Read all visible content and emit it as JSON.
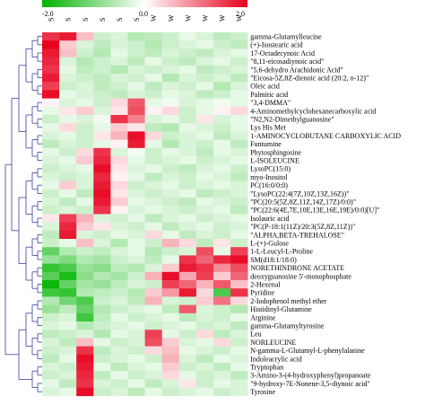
{
  "chart_data": {
    "type": "heatmap",
    "color_scale": {
      "min": -2.0,
      "mid": 0.0,
      "max": 2.0,
      "min_label": "-2.0",
      "mid_label": "0.0",
      "max_label": "2.0",
      "low_color": "#00b400",
      "mid_color": "#ffffff",
      "high_color": "#e8001c"
    },
    "columns": [
      "S",
      "S",
      "S",
      "S",
      "S",
      "S",
      "W",
      "W",
      "W",
      "W",
      "W",
      "W"
    ],
    "rows": [
      "gamma-Glutamylleucine",
      "(+)-Isostearic acid",
      "17-Octadecynoic Acid",
      "\"8,11-eicosadiynoic acid\"",
      "\"5,6-dehydro Arachidonic Acid\"",
      "\"Eicosa-5Z,8Z-dienoic acid (20:2, n-12)\"",
      "Oleic acid",
      "Palmitic acid",
      "\"3,4-DMMA\"",
      "4-Aminomethylcyclohexanecarboxylic acid",
      "\"N2,N2-Dimethylguanosine\"",
      "Lys His Met",
      "1-AMINOCYCLOBUTANE CARBOXYLIC ACID",
      "Funtumine",
      "Phytosphingosine",
      "L-ISOLEUCINE",
      "LysoPC(15:0)",
      "myo-Inositol",
      "PC(16:0/0:0)",
      "\"LysoPC(22:4(7Z,10Z,13Z,16Z))\"",
      "\"PC(20:5(5Z,8Z,11Z,14Z,17Z)/0:0)\"",
      "\"PC(22:6(4E,7E,10E,13E,16E,19E)/0:0)[U]\"",
      "Isolauric acid",
      "\"PC(P-18:1(11Z)/20:3(5Z,8Z,11Z))\"",
      "\"ALPHA,BETA-TREHALOSE\"",
      "L-(+)-Gulose",
      "1-L-Leucyl-L-Proline",
      "SM(d18:1/18:0)",
      "NORETHINDRONE ACETATE",
      "deoxyguanosine 5'-monophosphate",
      "2-Hexenal",
      "Pyridine",
      "2-Iodophenol methyl ether",
      "Histidinyl-Glutamine",
      "Arginine",
      "gamma-Glutamyltyrosine",
      "Leu",
      "NORLEUCINE",
      "N-gamma-L-Glutamyl-L-phenylalanine",
      "Indoleacrylic acid",
      "Tryptophan",
      "3-Amino-3-(4-hydroxyphenyl)propanoate",
      "\"9-hydroxy-7E-Nonene-3,5-diynoic acid\"",
      "Tyrosine"
    ],
    "values": [
      [
        1.6,
        1.8,
        0.5,
        -0.4,
        -0.3,
        -0.6,
        -0.5,
        -0.4,
        -0.2,
        -0.3,
        -0.5,
        -0.4
      ],
      [
        2.0,
        0.4,
        -0.3,
        -0.5,
        -0.3,
        -0.4,
        -0.6,
        -0.4,
        -0.3,
        -0.2,
        -0.4,
        -0.5
      ],
      [
        1.8,
        0.5,
        -0.4,
        -0.6,
        -0.2,
        -0.4,
        -0.5,
        -0.3,
        -0.4,
        -0.5,
        -0.3,
        -0.2
      ],
      [
        1.7,
        -0.3,
        -0.6,
        -0.4,
        -0.3,
        -0.5,
        -0.2,
        -0.4,
        -0.5,
        -0.3,
        -0.2,
        -0.4
      ],
      [
        1.6,
        -0.2,
        -0.5,
        -0.4,
        -0.6,
        -0.3,
        -0.4,
        -0.3,
        -0.2,
        -0.5,
        -0.4,
        -0.3
      ],
      [
        1.8,
        -0.3,
        -0.4,
        -0.5,
        -0.3,
        -0.4,
        -0.2,
        -0.6,
        -0.3,
        -0.4,
        -0.3,
        -0.5
      ],
      [
        1.5,
        -0.4,
        -0.3,
        -0.5,
        -0.4,
        -0.2,
        -0.5,
        -0.3,
        -0.4,
        -0.2,
        -0.6,
        -0.3
      ],
      [
        1.9,
        -0.2,
        -0.3,
        -0.4,
        -0.5,
        -0.3,
        -0.4,
        -0.2,
        -0.3,
        -0.5,
        -0.4,
        -0.2
      ],
      [
        0.1,
        -0.3,
        -0.2,
        -0.4,
        0.3,
        1.3,
        -0.2,
        -0.1,
        -0.3,
        -0.2,
        -0.1,
        -0.2
      ],
      [
        -0.2,
        0.2,
        0.4,
        -0.3,
        0.2,
        1.4,
        0.1,
        0.3,
        -0.4,
        -0.2,
        0.1,
        0.3
      ],
      [
        -0.4,
        -0.2,
        -0.3,
        -0.1,
        1.6,
        1.0,
        -0.3,
        -0.2,
        -0.4,
        0.2,
        -0.3,
        -0.2
      ],
      [
        -0.2,
        0.3,
        -0.4,
        -0.2,
        0.4,
        0.2,
        -0.5,
        -0.6,
        -0.2,
        -0.3,
        -0.4,
        -0.2
      ],
      [
        -0.3,
        -0.2,
        -0.4,
        0.2,
        0.6,
        1.9,
        0.3,
        -0.4,
        -0.3,
        -0.2,
        -0.5,
        -0.3
      ],
      [
        -0.5,
        -0.3,
        -0.4,
        -0.2,
        0.1,
        1.8,
        -0.2,
        -0.6,
        -0.3,
        -0.4,
        -0.2,
        -0.5
      ],
      [
        -0.2,
        -0.4,
        0.3,
        1.6,
        -0.3,
        -0.1,
        -0.4,
        -0.2,
        -0.3,
        -0.5,
        -0.2,
        -0.3
      ],
      [
        -0.3,
        -0.2,
        0.4,
        1.7,
        0.3,
        -0.2,
        -0.4,
        -0.3,
        -0.2,
        -0.4,
        -0.3,
        -0.2
      ],
      [
        -0.4,
        -0.3,
        -0.2,
        1.9,
        0.2,
        -0.3,
        -0.2,
        -0.4,
        -0.5,
        -0.3,
        -0.2,
        -0.4
      ],
      [
        -0.3,
        -0.4,
        -0.3,
        1.7,
        0.1,
        -0.2,
        -0.5,
        -0.3,
        -0.4,
        -0.2,
        -0.3,
        -0.5
      ],
      [
        -0.2,
        0.4,
        -0.3,
        1.8,
        0.3,
        -0.4,
        -0.3,
        -0.2,
        -0.4,
        -0.3,
        -0.2,
        -0.3
      ],
      [
        -0.4,
        -0.2,
        -0.5,
        1.9,
        0.2,
        -0.3,
        -0.4,
        -0.3,
        -0.2,
        -0.5,
        -0.4,
        -0.3
      ],
      [
        -0.3,
        -0.5,
        -0.2,
        1.8,
        0.4,
        -0.2,
        -0.3,
        -0.4,
        -0.5,
        -0.2,
        -0.3,
        -0.4
      ],
      [
        -0.4,
        -0.3,
        -0.4,
        1.6,
        0.1,
        -0.3,
        -0.2,
        -0.3,
        -0.4,
        -0.3,
        -0.2,
        -0.5
      ],
      [
        0.2,
        1.5,
        0.6,
        -0.3,
        -0.4,
        -0.2,
        -0.5,
        -0.3,
        -0.2,
        -0.4,
        -0.3,
        -0.2
      ],
      [
        -0.3,
        1.7,
        0.4,
        0.2,
        -0.3,
        -0.4,
        -0.2,
        -0.5,
        -0.3,
        -0.2,
        -0.4,
        -0.3
      ],
      [
        -0.5,
        1.8,
        -0.3,
        -0.4,
        -0.2,
        -0.3,
        0.3,
        -0.2,
        -0.5,
        -0.3,
        -0.4,
        -0.2
      ],
      [
        -0.4,
        -0.2,
        0.5,
        -0.3,
        -0.6,
        -0.2,
        -0.4,
        0.6,
        0.3,
        -0.5,
        0.2,
        -0.4
      ],
      [
        -1.2,
        -0.6,
        -0.4,
        -0.5,
        -0.3,
        -0.2,
        -0.6,
        -0.4,
        -0.3,
        1.4,
        -0.2,
        1.5
      ],
      [
        -0.8,
        -1.0,
        -0.6,
        -0.7,
        -0.4,
        -0.3,
        -0.5,
        -0.2,
        1.6,
        1.2,
        1.7,
        1.9
      ],
      [
        -1.6,
        -1.4,
        -0.8,
        -0.9,
        -0.5,
        -0.6,
        -0.3,
        0.4,
        1.8,
        1.6,
        0.9,
        1.4
      ],
      [
        -1.3,
        -1.8,
        -0.9,
        -0.6,
        -0.7,
        -0.4,
        0.6,
        1.9,
        0.7,
        1.5,
        0.4,
        1.2
      ],
      [
        -1.9,
        -1.2,
        -0.7,
        -0.8,
        -0.5,
        -0.3,
        -0.4,
        1.5,
        1.2,
        0.6,
        1.3,
        0.5
      ],
      [
        -1.5,
        -1.6,
        -0.6,
        -0.5,
        -0.4,
        -0.6,
        0.4,
        0.8,
        1.8,
        0.3,
        -1.4,
        1.6
      ],
      [
        -0.6,
        -1.1,
        -1.4,
        -0.4,
        -0.3,
        -0.5,
        0.6,
        -0.3,
        -0.4,
        0.4,
        1.1,
        0.3
      ],
      [
        -0.8,
        -0.5,
        -1.2,
        -0.6,
        -0.4,
        -0.3,
        -0.2,
        -0.5,
        1.3,
        -0.3,
        -0.4,
        -0.6
      ],
      [
        -0.4,
        -0.3,
        -1.5,
        -0.5,
        -0.2,
        -0.4,
        -0.3,
        -0.2,
        -0.5,
        -0.3,
        -0.4,
        -0.2
      ],
      [
        -0.3,
        -0.2,
        -0.6,
        -0.4,
        -0.3,
        -0.2,
        -0.4,
        -0.3,
        -0.2,
        -0.4,
        -0.3,
        -0.5
      ],
      [
        -0.5,
        -0.4,
        -0.3,
        -0.6,
        -0.2,
        -0.3,
        1.5,
        -0.2,
        -0.4,
        0.3,
        -0.5,
        -0.3
      ],
      [
        -0.3,
        -0.5,
        0.5,
        -0.2,
        -0.4,
        -0.3,
        1.4,
        0.4,
        -0.3,
        -0.2,
        0.3,
        -0.4
      ],
      [
        -0.4,
        -0.3,
        1.6,
        -0.5,
        -0.3,
        -0.4,
        0.3,
        0.5,
        -0.2,
        -0.3,
        -0.4,
        -0.2
      ],
      [
        -0.5,
        -0.2,
        1.9,
        -0.4,
        -0.3,
        -0.2,
        -0.4,
        0.6,
        -0.3,
        -0.5,
        -0.2,
        -0.3
      ],
      [
        -0.3,
        -0.4,
        1.8,
        -0.2,
        -0.5,
        -0.3,
        -0.2,
        0.4,
        -0.4,
        -0.3,
        -0.5,
        -0.2
      ],
      [
        -0.4,
        -0.3,
        1.7,
        -0.5,
        -0.2,
        -0.4,
        -0.3,
        0.3,
        -0.2,
        -0.4,
        -0.3,
        -0.5
      ],
      [
        -0.2,
        -0.5,
        1.6,
        -0.3,
        -0.4,
        -0.2,
        -0.5,
        -0.3,
        0.2,
        -0.4,
        -0.2,
        -0.3
      ],
      [
        -0.3,
        -0.2,
        1.9,
        -0.4,
        -0.3,
        -0.5,
        -0.2,
        -0.4,
        -0.3,
        -0.2,
        -0.4,
        -0.3
      ]
    ]
  }
}
